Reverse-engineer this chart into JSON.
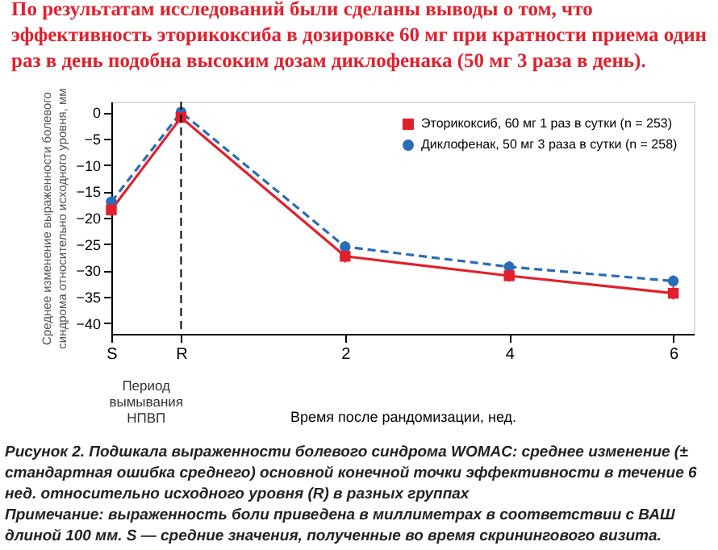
{
  "chart_data": {
    "type": "line",
    "title": "По результатам исследований были сделаны выводы о том, что эффективность эторикоксиба в дозировке 60 мг при кратности приема один раз в день подобна высоким дозам диклофенака (50 мг 3 раза в день).",
    "xlabel": "Время после рандомизации, нед.",
    "ylabel": "Среднее изменение выраженности болевого синдрома относительно исходного уровня, мм",
    "x": [
      -0.85,
      0,
      2,
      4,
      6
    ],
    "xlim": [
      -0.85,
      6.25
    ],
    "xticks": [
      {
        "value": -0.85,
        "label": "S"
      },
      {
        "value": 0,
        "label": "R"
      },
      2,
      4,
      6
    ],
    "ylim": [
      -42,
      2
    ],
    "yticks": [
      0,
      -5,
      -10,
      -15,
      -20,
      -25,
      -30,
      -35,
      -40
    ],
    "series": [
      {
        "name": "Эторикоксиб, 60 мг 1 раз в сутки (n = 253)",
        "color": "#e2202c",
        "values": [
          -18.5,
          -1,
          -27.3,
          -31,
          -34.3
        ],
        "errors": [
          1.2,
          1,
          1.2,
          1.1,
          1.2
        ],
        "marker": "square",
        "line_style": "solid"
      },
      {
        "name": "Диклофенак, 50 мг 3 раза в сутки (n = 258)",
        "color": "#2b6cb5",
        "values": [
          -17,
          0,
          -25.5,
          -29.3,
          -32
        ],
        "errors": [
          1.2,
          0.8,
          1.1,
          1.1,
          1.1
        ],
        "marker": "circle",
        "line_style": "dashed"
      }
    ],
    "ref_lines": [
      {
        "axis": "x",
        "value": 0,
        "color": "#000000",
        "line_style": "dashed"
      }
    ],
    "annotations": [
      "Период вымывания НПВП",
      "Рисунок 2. Подшкала выраженности болевого синдрома WOMAC: среднее изменение (± стандартная ошибка среднего) основной конечной точки эффективности в течение 6 нед. относительно исходного уровня (R) в разных группах",
      "Примечание: выраженность боли приведена в миллиметрах в соответствии с ВАШ длиной 100 мм. S — средние значения, полученные во время скринингового визита."
    ],
    "legend": "top right",
    "grid": false
  }
}
